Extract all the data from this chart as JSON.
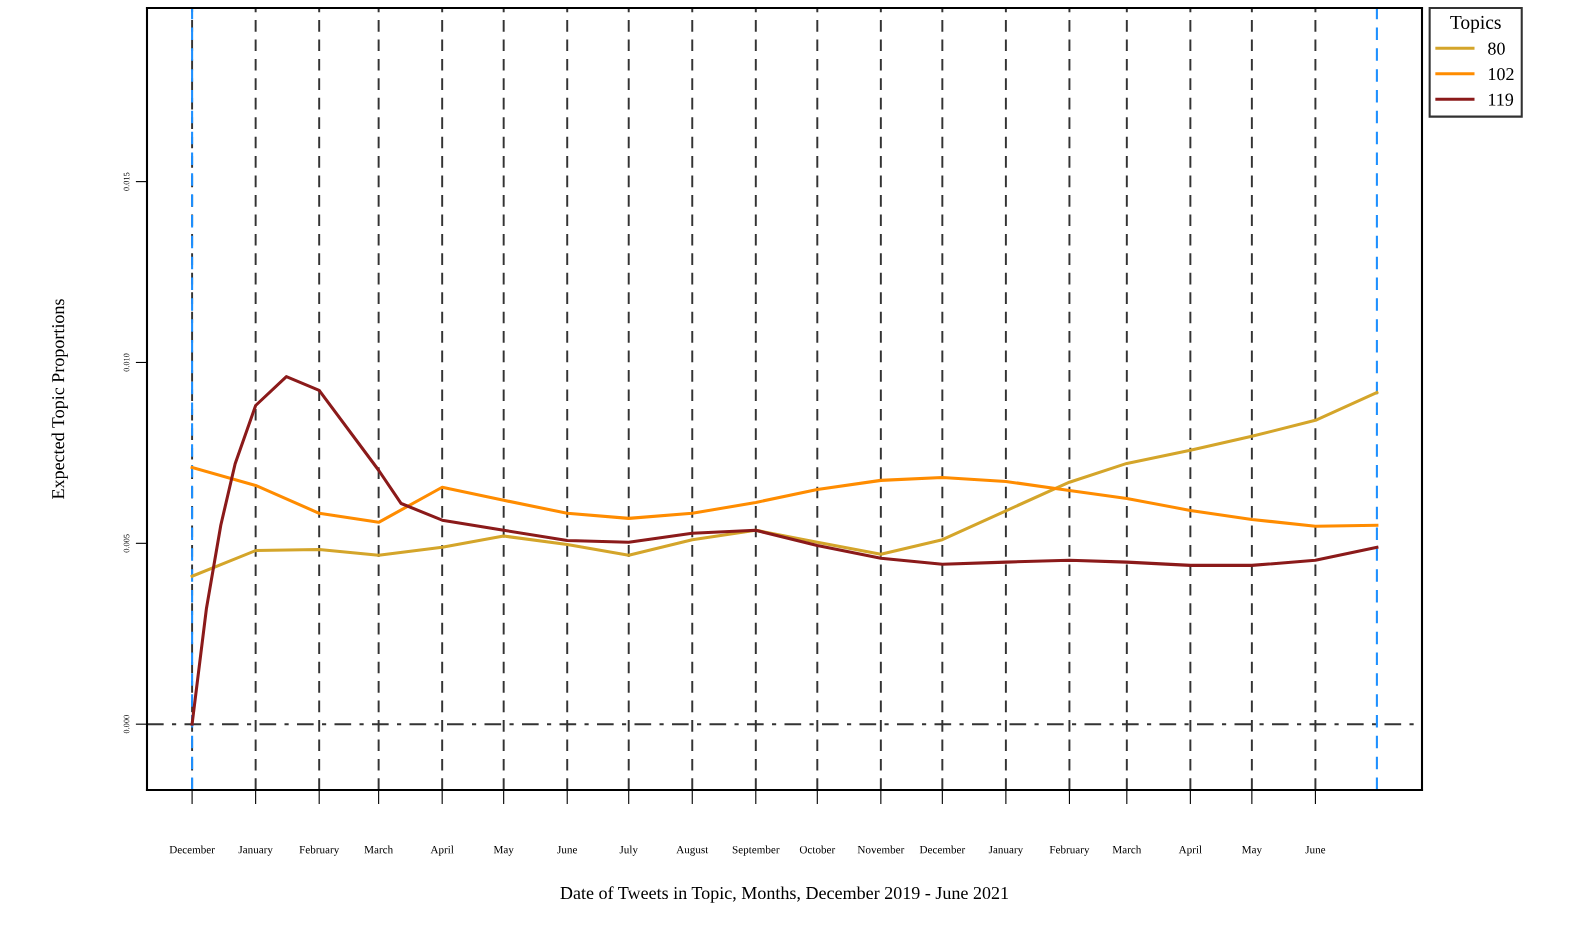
{
  "chart_data": {
    "type": "line",
    "xlabel": "Date of Tweets in Topic, Months, December 2019 - June 2021",
    "ylabel": "Expected Topic Proportions",
    "legend_title": "Topics",
    "x": [
      "2019-12-01",
      "2020-01-01",
      "2020-02-01",
      "2020-03-01",
      "2020-04-01",
      "2020-05-01",
      "2020-06-01",
      "2020-07-01",
      "2020-08-01",
      "2020-09-01",
      "2020-10-01",
      "2020-11-01",
      "2020-12-01",
      "2021-01-01",
      "2021-02-01",
      "2021-03-01",
      "2021-04-01",
      "2021-05-01",
      "2021-06-01",
      "2021-07-01"
    ],
    "series": [
      {
        "name": "80",
        "color": "#d4a52a",
        "values": [
          0.00409,
          0.0048,
          0.00483,
          0.00467,
          0.00489,
          0.0052,
          0.00497,
          0.00467,
          0.0051,
          0.00536,
          0.00503,
          0.0047,
          0.0051,
          0.0059,
          0.00669,
          0.00721,
          0.00757,
          0.00796,
          0.0084,
          0.00917
        ]
      },
      {
        "name": "102",
        "color": "#ff8c00",
        "values": [
          0.0071,
          0.0066,
          0.00583,
          0.00558,
          0.00655,
          0.00619,
          0.00583,
          0.00569,
          0.00583,
          0.00613,
          0.00649,
          0.00674,
          0.00682,
          0.00671,
          0.00646,
          0.00624,
          0.00591,
          0.00566,
          0.00547,
          0.0055
        ]
      },
      {
        "name": "119",
        "color": "#8b1a1a",
        "x": [
          "2019-12-01",
          "2019-12-08",
          "2019-12-15",
          "2019-12-22",
          "2020-01-01",
          "2020-01-16",
          "2020-02-01",
          "2020-03-01",
          "2020-03-12",
          "2020-04-01",
          "2020-05-01",
          "2020-06-01",
          "2020-07-01",
          "2020-08-01",
          "2020-09-01",
          "2020-10-01",
          "2020-11-01",
          "2020-12-01",
          "2021-01-01",
          "2021-02-01",
          "2021-03-01",
          "2021-04-01",
          "2021-05-01",
          "2021-06-01",
          "2021-07-01"
        ],
        "values": [
          0.0,
          0.0032,
          0.0055,
          0.0072,
          0.00881,
          0.00961,
          0.00923,
          0.00702,
          0.0061,
          0.00564,
          0.00536,
          0.00508,
          0.00503,
          0.00528,
          0.00536,
          0.00494,
          0.00459,
          0.00442,
          0.00448,
          0.00453,
          0.00448,
          0.00439,
          0.00439,
          0.00453,
          0.00489
        ]
      }
    ],
    "xlim": [
      "2019-11-09",
      "2021-07-23"
    ],
    "xticks": [
      {
        "value": "2019-12-01",
        "label": "December"
      },
      {
        "value": "2020-01-01",
        "label": "January"
      },
      {
        "value": "2020-02-01",
        "label": "February"
      },
      {
        "value": "2020-03-01",
        "label": "March"
      },
      {
        "value": "2020-04-01",
        "label": "April"
      },
      {
        "value": "2020-05-01",
        "label": "May"
      },
      {
        "value": "2020-06-01",
        "label": "June"
      },
      {
        "value": "2020-07-01",
        "label": "July"
      },
      {
        "value": "2020-08-01",
        "label": "August"
      },
      {
        "value": "2020-09-01",
        "label": "September"
      },
      {
        "value": "2020-10-01",
        "label": "October"
      },
      {
        "value": "2020-11-01",
        "label": "November"
      },
      {
        "value": "2020-12-01",
        "label": "December"
      },
      {
        "value": "2021-01-01",
        "label": "January"
      },
      {
        "value": "2021-02-01",
        "label": "February"
      },
      {
        "value": "2021-03-01",
        "label": "March"
      },
      {
        "value": "2021-04-01",
        "label": "April"
      },
      {
        "value": "2021-05-01",
        "label": "May"
      },
      {
        "value": "2021-06-01",
        "label": "June"
      }
    ],
    "ylim": [
      -0.00182,
      0.0198
    ],
    "yticks": [
      {
        "value": 0,
        "label": "0.000"
      },
      {
        "value": 0.005,
        "label": "0.005"
      },
      {
        "value": 0.01,
        "label": "0.010"
      },
      {
        "value": 0.015,
        "label": "0.015"
      }
    ],
    "ref_lines": [
      {
        "axis": "y",
        "value": 0,
        "color": "#333333",
        "line_style": "dashdot"
      },
      {
        "axis": "x",
        "value": "2019-12-01",
        "color": "#1e90ff",
        "line_style": "dashed"
      },
      {
        "axis": "x",
        "value": "2021-07-01",
        "color": "#1e90ff",
        "line_style": "dashed"
      }
    ],
    "grid": "x",
    "legend": "top right",
    "line_style": "solid"
  }
}
